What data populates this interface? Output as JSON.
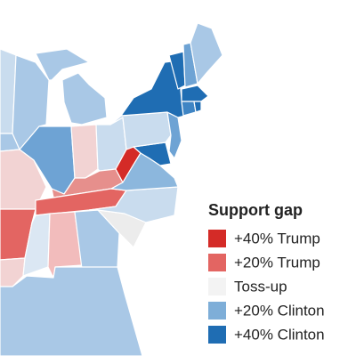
{
  "legend": {
    "title": "Support gap",
    "items": [
      {
        "label": "+40% Trump",
        "color": "#d42b27"
      },
      {
        "label": "+20% Trump",
        "color": "#e36562"
      },
      {
        "label": "Toss-up",
        "color": "#f3f3f3"
      },
      {
        "label": "+20% Clinton",
        "color": "#7eaed8"
      },
      {
        "label": "+40% Clinton",
        "color": "#1f6db3"
      }
    ]
  }
}
